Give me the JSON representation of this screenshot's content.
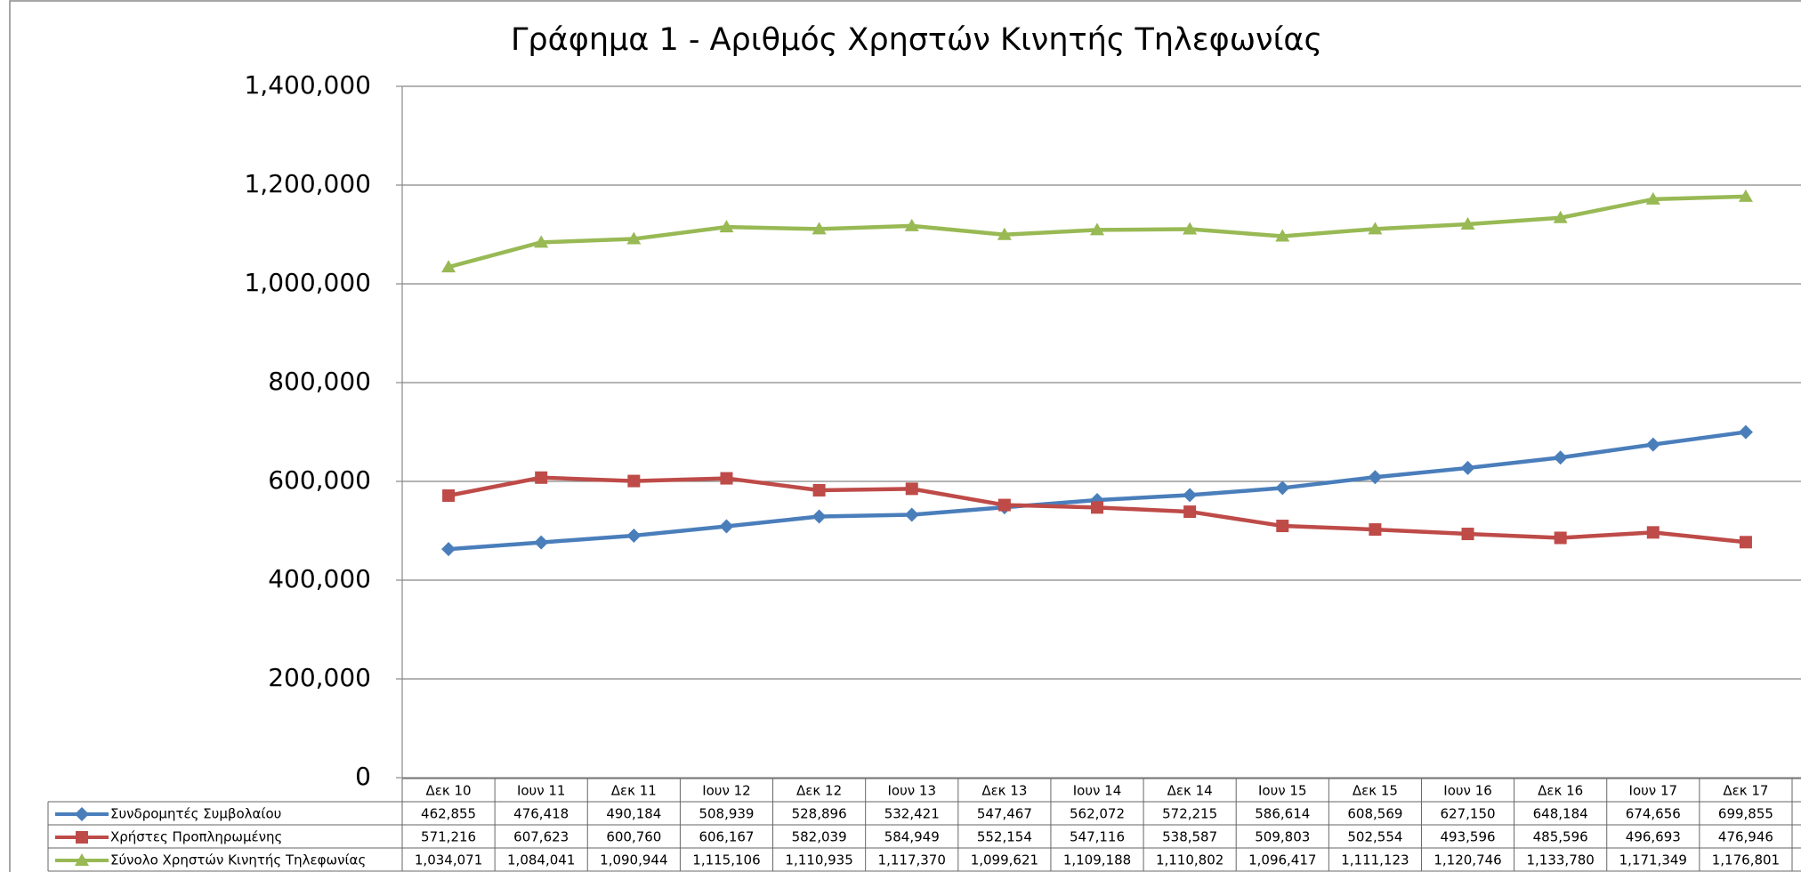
{
  "chart_data": {
    "type": "line",
    "title": "Γράφημα 1 - Αριθμός Χρηστών Κινητής Τηλεφωνίας",
    "categories": [
      "Δεκ 10",
      "Ιουν 11",
      "Δεκ 11",
      "Ιουν 12",
      "Δεκ 12",
      "Ιουν 13",
      "Δεκ 13",
      "Ιουν 14",
      "Δεκ 14",
      "Ιουν 15",
      "Δεκ 15",
      "Ιουν 16",
      "Δεκ 16",
      "Ιουν 17",
      "Δεκ 17"
    ],
    "series": [
      {
        "name": "Συνδρομητές Συμβολαίου",
        "color": "#4a7ebb",
        "marker": "diamond",
        "values": [
          462855,
          476418,
          490184,
          508939,
          528896,
          532421,
          547467,
          562072,
          572215,
          586614,
          608569,
          627150,
          648184,
          674656,
          699855
        ],
        "value_labels": [
          "462,855",
          "476,418",
          "490,184",
          "508,939",
          "528,896",
          "532,421",
          "547,467",
          "562,072",
          "572,215",
          "586,614",
          "608,569",
          "627,150",
          "648,184",
          "674,656",
          "699,855"
        ]
      },
      {
        "name": "Χρήστες Προπληρωμένης",
        "color": "#be4b48",
        "marker": "square",
        "values": [
          571216,
          607623,
          600760,
          606167,
          582039,
          584949,
          552154,
          547116,
          538587,
          509803,
          502554,
          493596,
          485596,
          496693,
          476946
        ],
        "value_labels": [
          "571,216",
          "607,623",
          "600,760",
          "606,167",
          "582,039",
          "584,949",
          "552,154",
          "547,116",
          "538,587",
          "509,803",
          "502,554",
          "493,596",
          "485,596",
          "496,693",
          "476,946"
        ]
      },
      {
        "name": "Σύνολο Χρηστών Κινητής Τηλεφωνίας",
        "color": "#98b954",
        "marker": "triangle",
        "values": [
          1034071,
          1084041,
          1090944,
          1115106,
          1110935,
          1117370,
          1099621,
          1109188,
          1110802,
          1096417,
          1111123,
          1120746,
          1133780,
          1171349,
          1176801
        ],
        "value_labels": [
          "1,034,071",
          "1,084,041",
          "1,090,944",
          "1,115,106",
          "1,110,935",
          "1,117,370",
          "1,099,621",
          "1,109,188",
          "1,110,802",
          "1,096,417",
          "1,111,123",
          "1,120,746",
          "1,133,780",
          "1,171,349",
          "1,176,801"
        ]
      }
    ],
    "ylim": [
      0,
      1400000
    ],
    "yticks": [
      0,
      {
        "value": 200000,
        "label": "200,000"
      },
      {
        "value": 400000,
        "label": "400,000"
      },
      {
        "value": 600000,
        "label": "600,000"
      },
      {
        "value": 800000,
        "label": "800,000"
      },
      {
        "value": 1000000,
        "label": "1,000,000"
      },
      {
        "value": 1200000,
        "label": "1,200,000"
      },
      {
        "value": 1400000,
        "label": "1,400,000"
      }
    ],
    "grid": true
  }
}
